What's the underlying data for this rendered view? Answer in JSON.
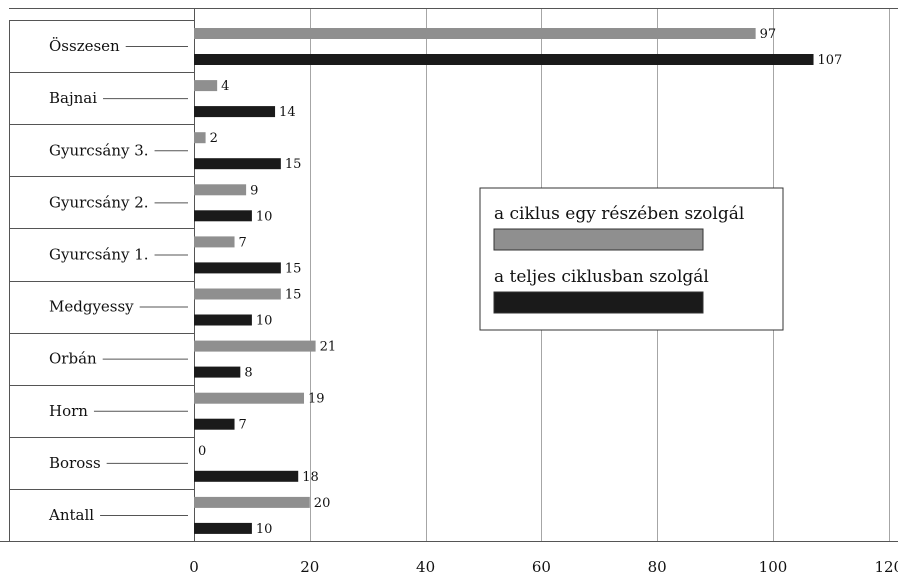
{
  "chart_data": {
    "type": "bar",
    "orientation": "horizontal",
    "categories": [
      "Összesen",
      "Bajnai",
      "Gyurcsány 3.",
      "Gyurcsány 2.",
      "Gyurcsány 1.",
      "Medgyessy",
      "Orbán",
      "Horn",
      "Boross",
      "Antall"
    ],
    "series": [
      {
        "name": "a ciklus egy részében szolgál",
        "color": "#8f8f8f",
        "values": [
          97,
          4,
          2,
          9,
          7,
          15,
          21,
          19,
          0,
          20
        ]
      },
      {
        "name": "a teljes ciklusban szolgál",
        "color": "#1a1a1a",
        "values": [
          107,
          14,
          15,
          10,
          15,
          10,
          8,
          7,
          18,
          10
        ]
      }
    ],
    "x_ticks": [
      "0",
      "20",
      "40",
      "60",
      "80",
      "100",
      "120"
    ],
    "xlim": [
      0,
      120
    ],
    "grid": "vertical",
    "legend_position": "center-right",
    "title": "",
    "xlabel": "",
    "ylabel": ""
  }
}
